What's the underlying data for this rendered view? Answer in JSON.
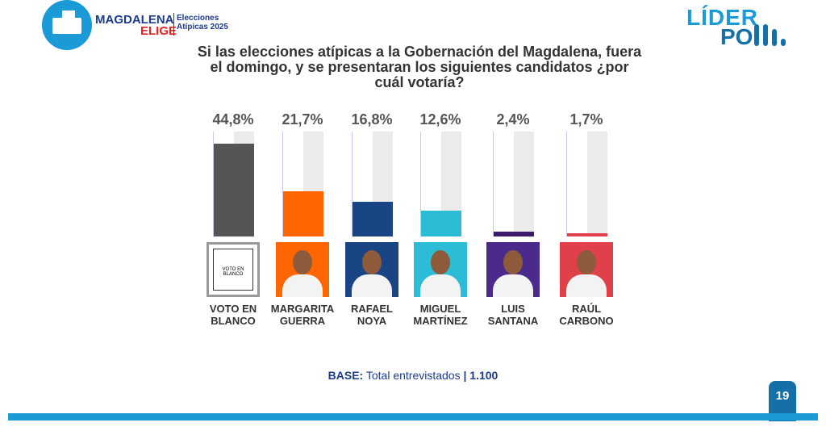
{
  "header": {
    "brand_main": "MAGDALENA",
    "brand_sub": "ELIGE",
    "event_line1": "Elecciones",
    "event_line2": "Atípicas 2025",
    "pollster_line1": "LÍDER",
    "pollster_line2": "PO"
  },
  "chart_data": {
    "type": "bar",
    "title": "Si las elecciones atípicas a la Gobernación del Magdalena, fuera el domingo, y se presentaran los siguientes candidatos ¿por cuál votaría?",
    "categories": [
      "VOTO EN BLANCO",
      "MARGARITA GUERRA",
      "RAFAEL NOYA",
      "MIGUEL MARTÍNEZ",
      "LUIS SANTANA",
      "RAÚL CARBONO"
    ],
    "name_lines": [
      [
        "VOTO EN",
        "BLANCO"
      ],
      [
        "MARGARITA",
        "GUERRA"
      ],
      [
        "RAFAEL",
        "NOYA"
      ],
      [
        "MIGUEL",
        "MARTÍNEZ"
      ],
      [
        "LUIS",
        "SANTANA"
      ],
      [
        "RAÚL",
        "CARBONO"
      ]
    ],
    "values": [
      44.8,
      21.7,
      16.8,
      12.6,
      2.4,
      1.7
    ],
    "labels": [
      "44,8%",
      "21,7%",
      "16,8%",
      "12,6%",
      "2,4%",
      "1,7%"
    ],
    "colors": [
      "#555555",
      "#ff6600",
      "#1a4584",
      "#2dbcd6",
      "#3b1a6b",
      "#e0404a"
    ],
    "photo_bg": [
      "#ffffff",
      "#ff6600",
      "#1a4584",
      "#2dbcd6",
      "#4a2a8a",
      "#e0404a"
    ],
    "blank_card_text": "VOTO EN BLANCO",
    "ylim": [
      0,
      50
    ],
    "xlabel": "",
    "ylabel": ""
  },
  "footer": {
    "base_label": "BASE:",
    "base_text": "Total entrevistados",
    "base_sep": "|",
    "base_value": "1.100",
    "page_number": "19"
  }
}
